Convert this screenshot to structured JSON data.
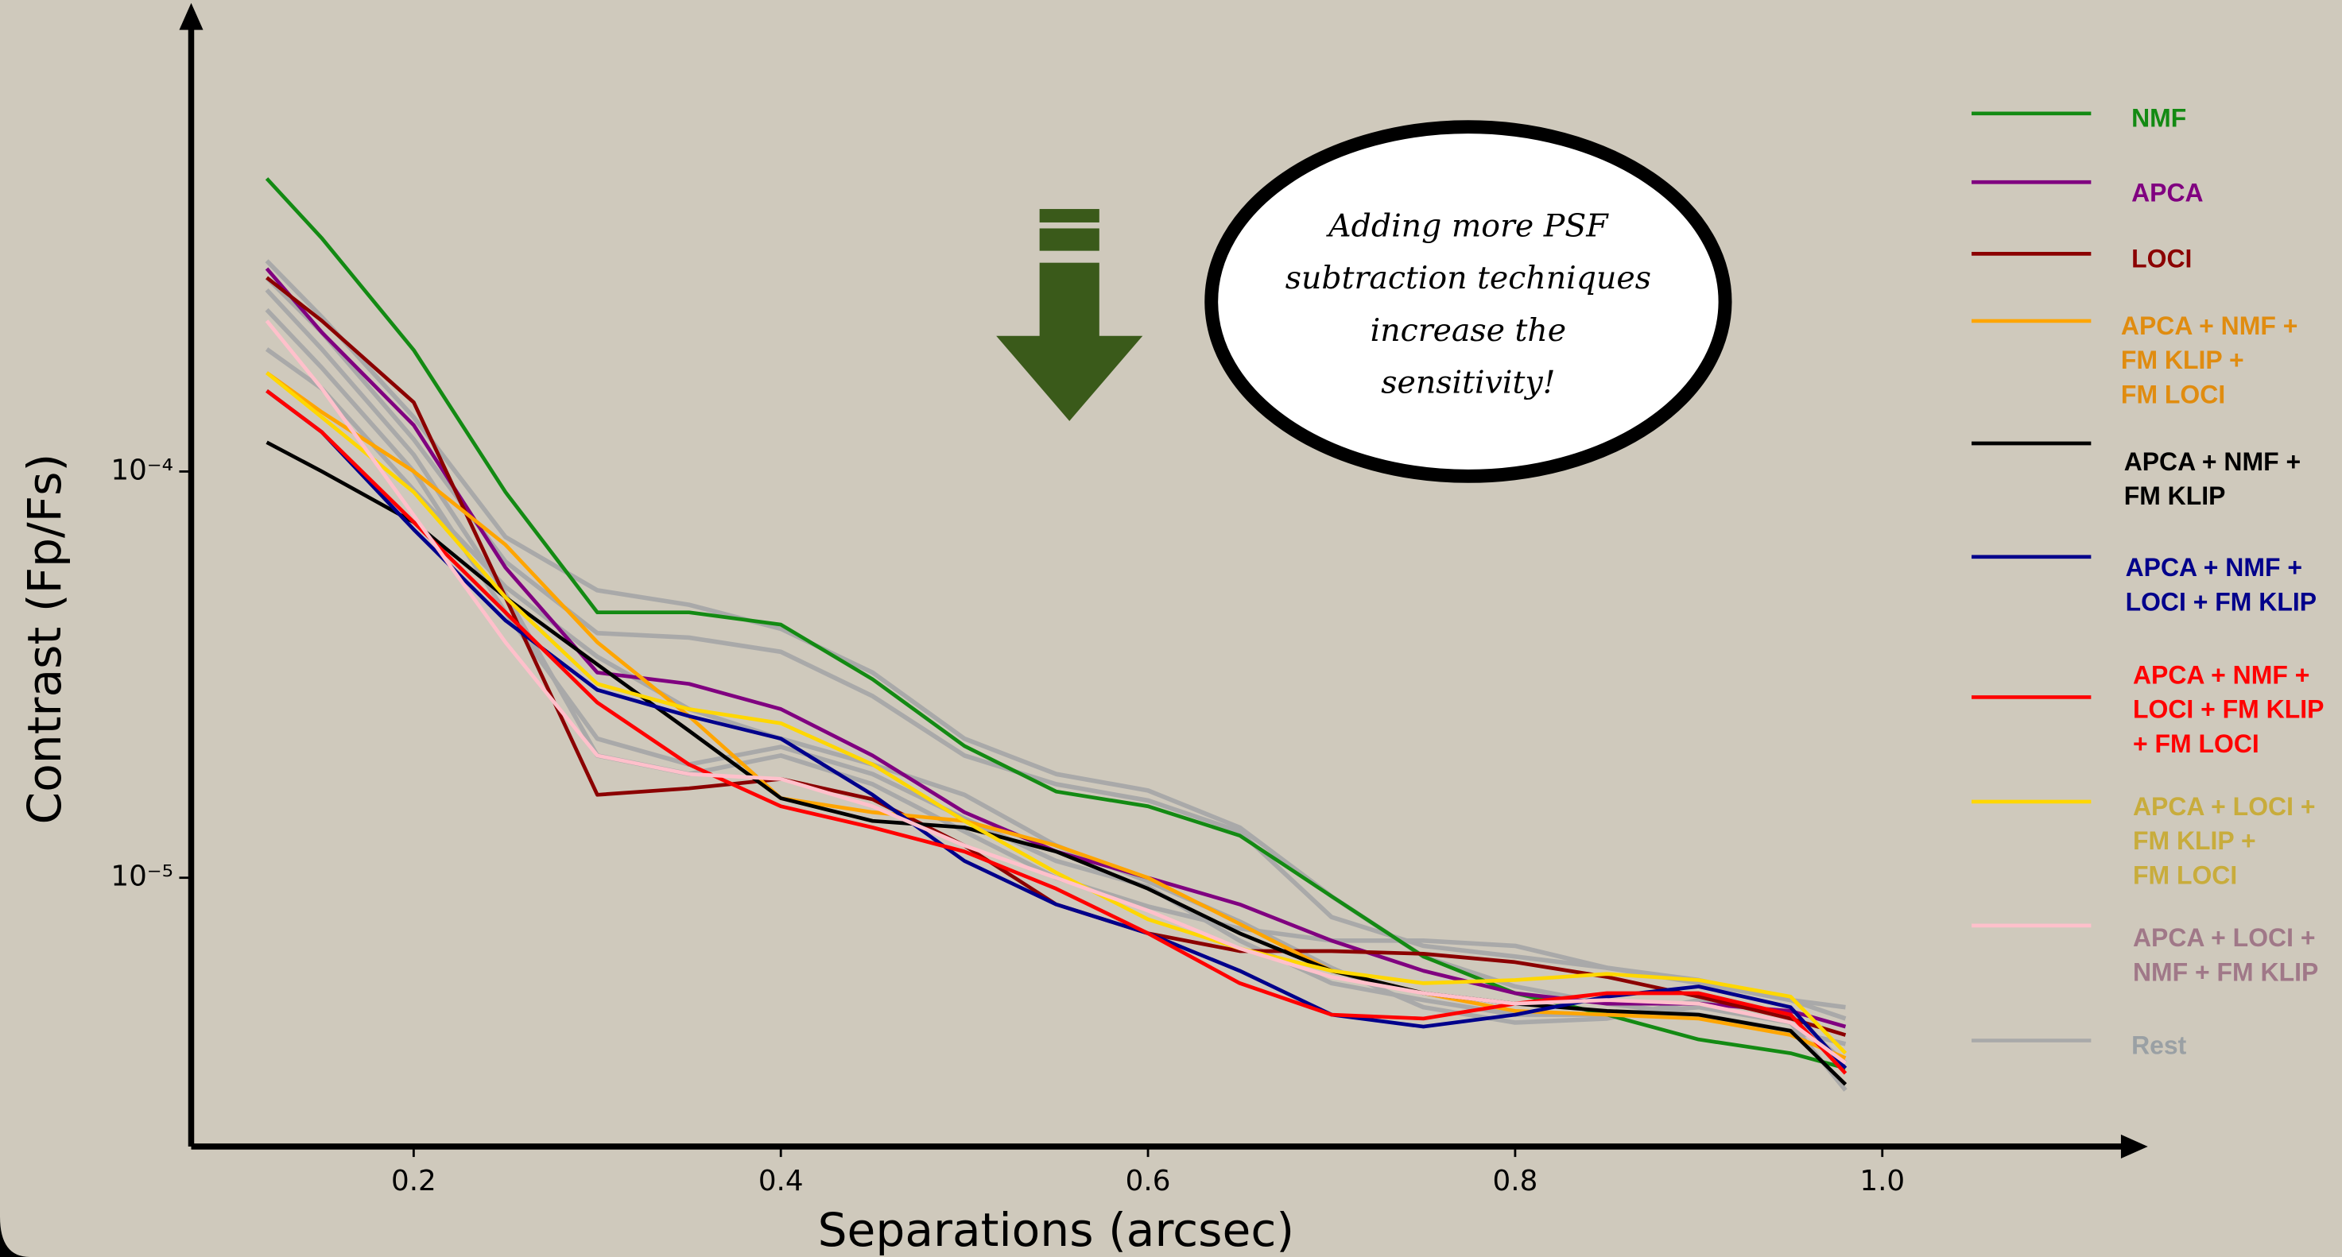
{
  "chart_data": {
    "type": "line",
    "x_label": "Separations (arcsec)",
    "y_label": "Contrast (Fp/Fs)",
    "log_y": true,
    "xlim": [
      0.0788,
      1.1422
    ],
    "ylim": [
      2.18e-06,
      0.00133
    ],
    "xticks": [
      0.2,
      0.4,
      0.6,
      0.8,
      {
        "value": 1,
        "label": "1.0"
      }
    ],
    "yticks": [
      {
        "value": 0.0001,
        "label": "10⁻⁴"
      },
      {
        "value": 1e-05,
        "label": "10⁻⁵"
      }
    ],
    "annotation": [
      "Adding more PSF",
      "subtraction techniques",
      "increase the",
      "sensitivity!"
    ],
    "x": [
      0.12,
      0.15,
      0.2,
      0.25,
      0.3,
      0.35,
      0.4,
      0.45,
      0.5,
      0.55,
      0.6,
      0.65,
      0.7,
      0.75,
      0.8,
      0.85,
      0.9,
      0.95,
      0.98
    ],
    "series": [
      {
        "name": "NMF",
        "color": "#138a13",
        "label_color": "#138a13",
        "values": [
          0.000526,
          0.000375,
          0.000199,
          8.9e-05,
          4.5e-05,
          4.5e-05,
          4.2e-05,
          3.08e-05,
          2.11e-05,
          1.63e-05,
          1.5e-05,
          1.27e-05,
          9e-06,
          6.4e-06,
          5.2e-06,
          4.6e-06,
          4e-06,
          3.7e-06,
          3.4e-06
        ]
      },
      {
        "name": "APCA",
        "color": "#800080",
        "label_color": "#800080",
        "values": [
          0.000316,
          0.00022,
          0.00013,
          5.8e-05,
          3.2e-05,
          3e-05,
          2.6e-05,
          2e-05,
          1.45e-05,
          1.16e-05,
          1e-05,
          8.6e-06,
          7e-06,
          5.9e-06,
          5.2e-06,
          4.9e-06,
          4.9e-06,
          4.7e-06,
          4.3e-06
        ]
      },
      {
        "name": "LOCI",
        "color": "#8b0000",
        "label_color": "#8b0000",
        "values": [
          0.0003,
          0.000235,
          0.000148,
          4.9e-05,
          1.6e-05,
          1.66e-05,
          1.75e-05,
          1.56e-05,
          1.2e-05,
          8.6e-06,
          7.3e-06,
          6.6e-06,
          6.6e-06,
          6.5e-06,
          6.2e-06,
          5.7e-06,
          5.1e-06,
          4.5e-06,
          4.1e-06
        ]
      },
      {
        "name": "APCA + NMF +\nFM KLIP +\nFM LOCI",
        "color": "#ffa500",
        "label_color": "#e08c10",
        "values": [
          0.000175,
          0.00014,
          0.0001,
          6.6e-05,
          3.8e-05,
          2.5e-05,
          1.57e-05,
          1.45e-05,
          1.38e-05,
          1.2e-05,
          1e-05,
          7.7e-06,
          5.9e-06,
          5.2e-06,
          4.7e-06,
          4.6e-06,
          4.5e-06,
          4.1e-06,
          3.6e-06
        ]
      },
      {
        "name": "APCA + NMF +\nFM KLIP",
        "color": "#000000",
        "label_color": "#000000",
        "values": [
          0.000118,
          0.0001,
          7.5e-05,
          4.9e-05,
          3.35e-05,
          2.3e-05,
          1.57e-05,
          1.38e-05,
          1.33e-05,
          1.16e-05,
          9.4e-06,
          7.3e-06,
          5.9e-06,
          5.2e-06,
          4.9e-06,
          4.7e-06,
          4.6e-06,
          4.2e-06,
          3.1e-06
        ]
      },
      {
        "name": "APCA + NMF +\nLOCI + FM KLIP",
        "color": "#00008b",
        "label_color": "#00008b",
        "values": [
          0.000158,
          0.000125,
          7.2e-05,
          4.3e-05,
          2.9e-05,
          2.5e-05,
          2.2e-05,
          1.6e-05,
          1.1e-05,
          8.6e-06,
          7.3e-06,
          5.9e-06,
          4.6e-06,
          4.3e-06,
          4.6e-06,
          5.1e-06,
          5.4e-06,
          4.8e-06,
          3.4e-06
        ]
      },
      {
        "name": "APCA + NMF +\nLOCI + FM KLIP\n+ FM LOCI",
        "color": "#ff0000",
        "label_color": "#ff0000",
        "values": [
          0.000158,
          0.000125,
          7.5e-05,
          4.5e-05,
          2.7e-05,
          1.9e-05,
          1.5e-05,
          1.33e-05,
          1.16e-05,
          9.4e-06,
          7.3e-06,
          5.5e-06,
          4.6e-06,
          4.5e-06,
          4.9e-06,
          5.2e-06,
          5.2e-06,
          4.6e-06,
          3.3e-06
        ]
      },
      {
        "name": "APCA + LOCI +\nFM KLIP +\nFM LOCI",
        "color": "#ffd700",
        "label_color": "#c8ac3c",
        "values": [
          0.000175,
          0.000136,
          8.9e-05,
          4.9e-05,
          3e-05,
          2.6e-05,
          2.4e-05,
          1.9e-05,
          1.38e-05,
          1.03e-05,
          7.9e-06,
          6.7e-06,
          5.9e-06,
          5.5e-06,
          5.6e-06,
          5.8e-06,
          5.6e-06,
          5.1e-06,
          3.7e-06
        ]
      },
      {
        "name": "APCA + LOCI +\nNMF + FM KLIP",
        "color": "#ffc0cb",
        "label_color": "#a07888",
        "values": [
          0.000235,
          0.00016,
          7.8e-05,
          3.8e-05,
          2e-05,
          1.8e-05,
          1.75e-05,
          1.5e-05,
          1.2e-05,
          1e-05,
          8.3e-06,
          6.7e-06,
          5.7e-06,
          5.2e-06,
          4.9e-06,
          5e-06,
          4.9e-06,
          4.4e-06,
          3.5e-06
        ]
      },
      {
        "name": "Rest",
        "color": "#a9a9a9",
        "label_color": "#9aa0a4",
        "values": [
          [
            0.00033,
            0.00024,
            0.000136,
            6.9e-05,
            5.1e-05,
            4.7e-05,
            4.1e-05,
            3.2e-05,
            2.2e-05,
            1.8e-05,
            1.64e-05,
            1.33e-05,
            9e-06,
            6.4e-06,
            5.4e-06,
            4.9e-06,
            4.6e-06,
            4.2e-06,
            3.9e-06
          ],
          [
            0.0003,
            0.00022,
            0.00012,
            6e-05,
            4e-05,
            3.9e-05,
            3.6e-05,
            2.8e-05,
            2e-05,
            1.7e-05,
            1.55e-05,
            1.3e-05,
            8e-06,
            6.8e-06,
            6.4e-06,
            6e-06,
            5.5e-06,
            5e-06,
            4.8e-06
          ],
          [
            0.00028,
            0.0002,
            0.00011,
            5e-05,
            2e-05,
            1.8e-05,
            2e-05,
            1.7e-05,
            1.3e-05,
            1e-05,
            8.5e-06,
            7.5e-06,
            7e-06,
            7e-06,
            6.8e-06,
            6e-06,
            5.6e-06,
            5e-06,
            4.5e-06
          ],
          [
            0.00025,
            0.00018,
            0.0001,
            4.5e-05,
            2.2e-05,
            1.9e-05,
            2.1e-05,
            1.8e-05,
            1.4e-05,
            1.1e-05,
            9.5e-06,
            7e-06,
            5.5e-06,
            5e-06,
            4.6e-06,
            4.6e-06,
            4.8e-06,
            4.4e-06,
            3e-06
          ],
          [
            0.0002,
            0.00016,
            9e-05,
            5.2e-05,
            3.5e-05,
            2.6e-05,
            2.2e-05,
            1.9e-05,
            1.6e-05,
            1.2e-05,
            9.8e-06,
            7.8e-06,
            6e-06,
            4.8e-06,
            4.4e-06,
            4.5e-06,
            5e-06,
            4.6e-06,
            3.5e-06
          ]
        ]
      }
    ]
  }
}
